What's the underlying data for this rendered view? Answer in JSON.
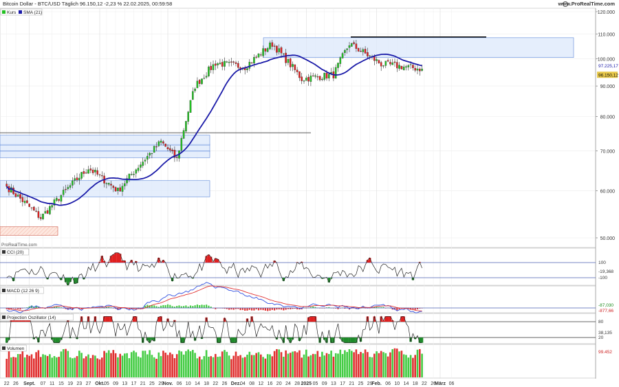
{
  "header": {
    "title": "Bitcoin Dollar - BTC/USD Täglich 96.150,12 -2,23 % 22.02.2025, 00:59:58",
    "brand": "www.ProRealTime.com",
    "watermark": "ProRealTime.com"
  },
  "colors": {
    "up": "#22c022",
    "down": "#e02020",
    "sma": "#1a1aa8",
    "zone": "#dce8fb",
    "zone_border": "#5a86d8",
    "macd": "#3050e0",
    "signal": "#e03030"
  },
  "chart_data": [
    {
      "type": "candlestick",
      "title": "",
      "legend": [
        "Kurs",
        "SMA (21)"
      ],
      "y_ticks": [
        "120.000",
        "110.000",
        "100.000",
        "90.000",
        "80.000",
        "70.000",
        "60.000",
        "50.000"
      ],
      "ylim": [
        50000,
        120000
      ],
      "price_labels": [
        "97.225,17",
        "96.150,12"
      ],
      "x_labels": [
        "22",
        "26",
        "Sept.",
        "07",
        "11",
        "15",
        "19",
        "23",
        "27",
        "Okt.",
        "05",
        "09",
        "13",
        "17",
        "21",
        "25",
        "29",
        "Nov.",
        "06",
        "10",
        "14",
        "18",
        "22",
        "26",
        "Dez.",
        "04",
        "08",
        "12",
        "16",
        "20",
        "24",
        "28",
        "2025",
        "05",
        "09",
        "13",
        "17",
        "21",
        "25",
        "29",
        "Feb.",
        "06",
        "10",
        "14",
        "18",
        "22",
        "26",
        "März",
        "06"
      ],
      "close_key_values": [
        [
          "2024-08-22",
          61000
        ],
        [
          "2024-09-06",
          54000
        ],
        [
          "2024-09-27",
          65500
        ],
        [
          "2024-10-10",
          60000
        ],
        [
          "2024-10-29",
          72500
        ],
        [
          "2024-11-05",
          67800
        ],
        [
          "2024-11-13",
          90000
        ],
        [
          "2024-11-22",
          98400
        ],
        [
          "2024-12-05",
          96900
        ],
        [
          "2024-12-17",
          106000
        ],
        [
          "2024-12-30",
          92500
        ],
        [
          "2025-01-13",
          94000
        ],
        [
          "2025-01-20",
          106000
        ],
        [
          "2025-02-03",
          98000
        ],
        [
          "2025-02-21",
          96150
        ]
      ]
    },
    {
      "type": "line",
      "title": "CCI (20)",
      "y_ticks": [
        "100",
        "-100"
      ],
      "last_value": "-19,368"
    },
    {
      "type": "bar",
      "title": "MACD (12 26 9)",
      "values_shown": [
        "-87,030",
        "-877,66"
      ]
    },
    {
      "type": "line",
      "title": "Projection Oszillator (14)",
      "y_ticks": [
        "80",
        "20"
      ],
      "last_value": "38,135"
    },
    {
      "type": "bar",
      "title": "Volumen",
      "last_value": "99.452"
    }
  ]
}
